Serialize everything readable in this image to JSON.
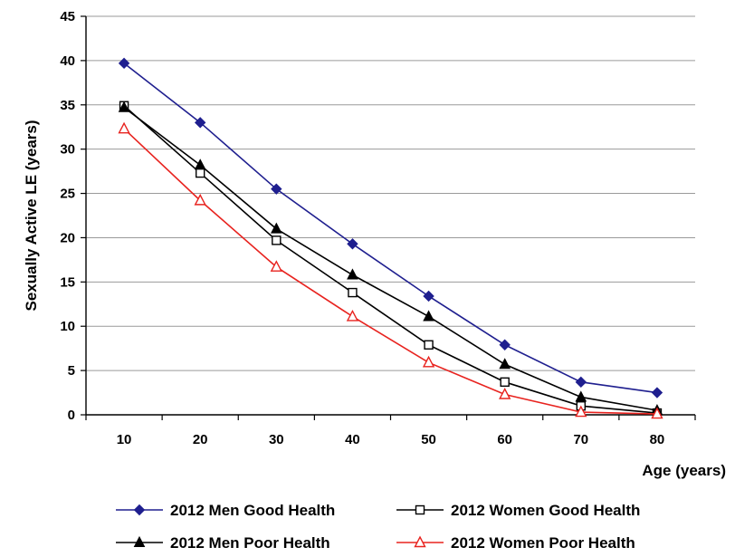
{
  "chart_data": {
    "type": "line",
    "title": "",
    "xlabel": "Age (years)",
    "ylabel": "Sexually Active LE (years)",
    "x": [
      10,
      20,
      30,
      40,
      50,
      60,
      70,
      80
    ],
    "xlim": [
      5,
      85
    ],
    "ylim": [
      0,
      45
    ],
    "yticks": [
      0,
      5,
      10,
      15,
      20,
      25,
      30,
      35,
      40,
      45
    ],
    "grid": "horizontal",
    "legend_position": "bottom",
    "series": [
      {
        "name": "2012 Men Good Health",
        "marker": "diamond-filled",
        "color": "#1f1f8f",
        "values": [
          39.7,
          33.0,
          25.5,
          19.3,
          13.4,
          7.9,
          3.7,
          2.5
        ]
      },
      {
        "name": "2012 Women Good Health",
        "marker": "square-open",
        "color": "#000000",
        "values": [
          34.9,
          27.3,
          19.7,
          13.8,
          7.9,
          3.7,
          1.0,
          0.2
        ]
      },
      {
        "name": "2012 Men Poor Health",
        "marker": "triangle-filled",
        "color": "#000000",
        "values": [
          34.7,
          28.2,
          21.0,
          15.8,
          11.1,
          5.7,
          2.0,
          0.5
        ]
      },
      {
        "name": "2012 Women Poor Health",
        "marker": "triangle-open",
        "color": "#e8231f",
        "values": [
          32.3,
          24.2,
          16.7,
          11.1,
          5.9,
          2.3,
          0.3,
          0.1
        ]
      }
    ]
  }
}
